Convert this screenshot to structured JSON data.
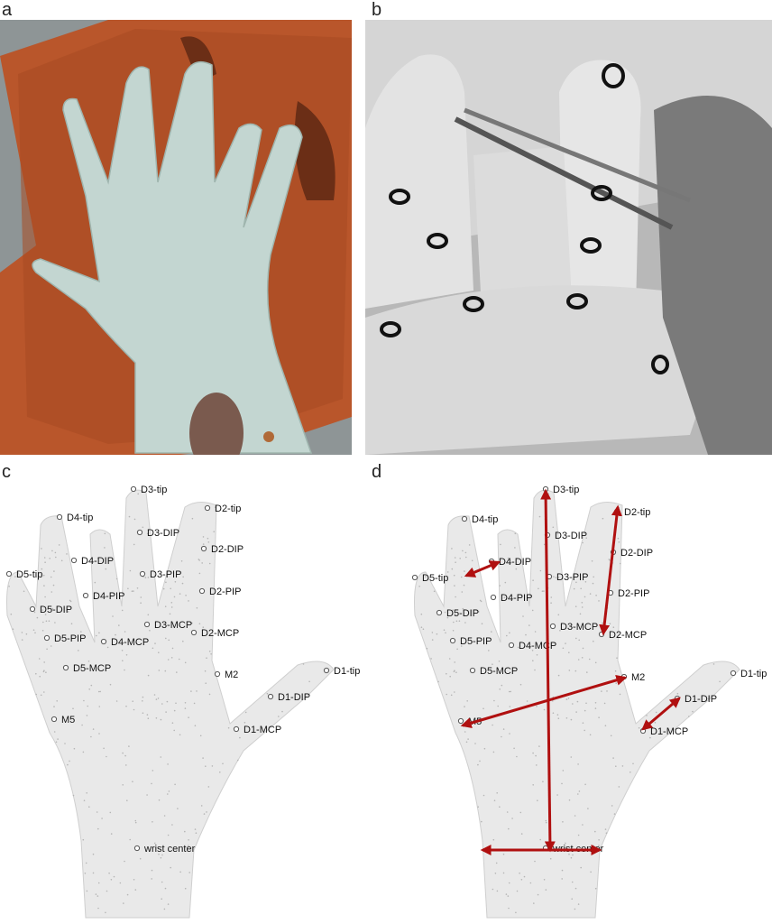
{
  "panels": {
    "a": "a",
    "b": "b",
    "c": "c",
    "d": "d"
  },
  "landmarks": [
    "D3-tip",
    "D2-tip",
    "D4-tip",
    "D3-DIP",
    "D2-DIP",
    "D4-DIP",
    "D5-tip",
    "D3-PIP",
    "D2-PIP",
    "D4-PIP",
    "D5-DIP",
    "D3-MCP",
    "D2-MCP",
    "D5-PIP",
    "D4-MCP",
    "D5-MCP",
    "M2",
    "D1-tip",
    "D1-DIP",
    "M5",
    "D1-MCP",
    "wrist center"
  ],
  "colors": {
    "arrow": "#b01010",
    "cloud": "#c8c8c8",
    "cast": "#c3d6d1",
    "sand": "#b9562b"
  }
}
